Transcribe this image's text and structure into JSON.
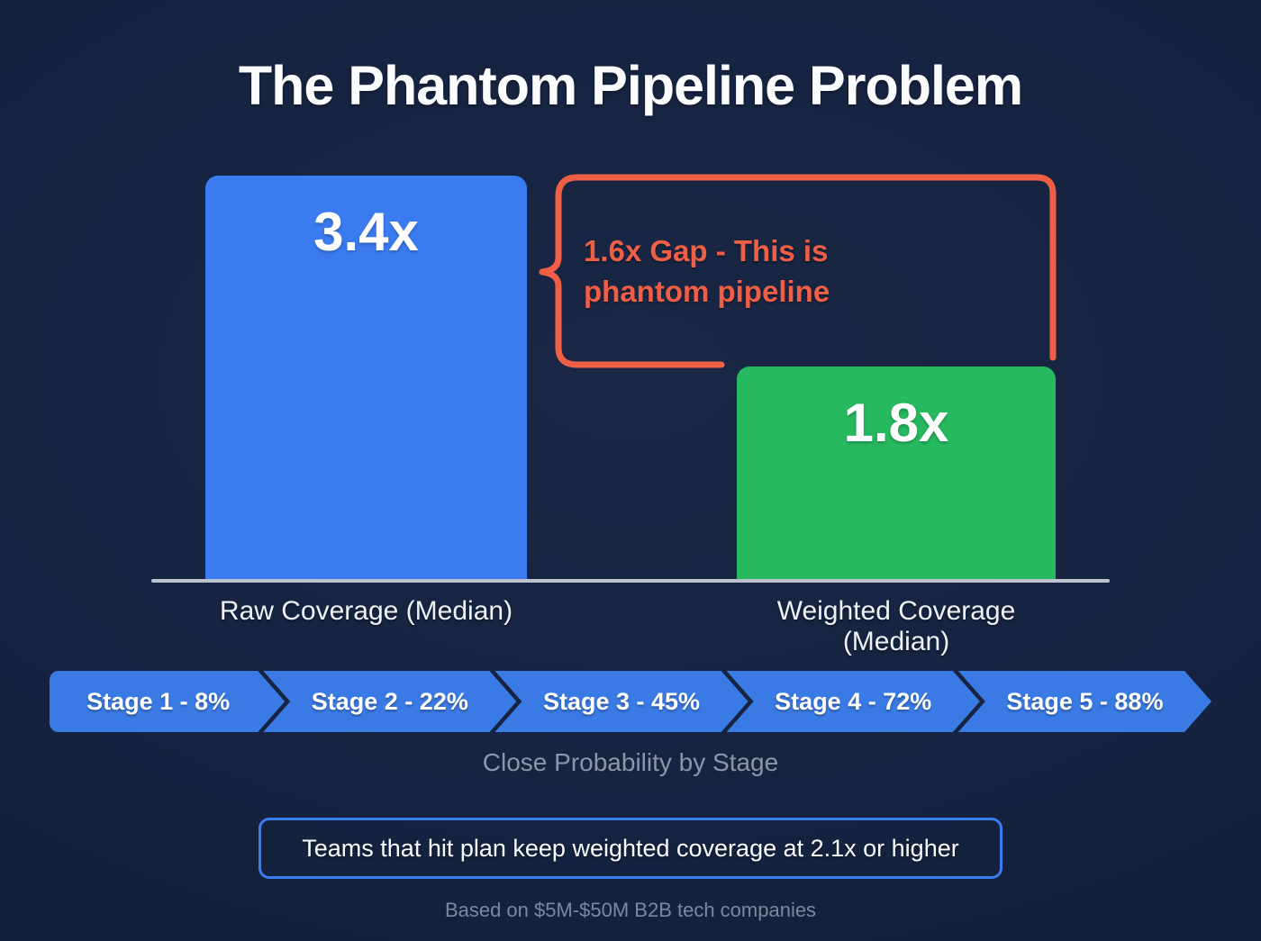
{
  "title": "The Phantom Pipeline Problem",
  "chart_data": {
    "type": "bar",
    "categories": [
      "Raw Coverage (Median)",
      "Weighted Coverage (Median)"
    ],
    "values": [
      3.4,
      1.8
    ],
    "value_labels": [
      "3.4x",
      "1.8x"
    ],
    "bar_colors": [
      "#3a7cf0",
      "#27b95f"
    ],
    "title": "The Phantom Pipeline Problem",
    "ylim": [
      0,
      3.4
    ],
    "grid": false,
    "legend": false,
    "annotation": {
      "gap_value": "1.6x",
      "text_line1": "1.6x Gap - This is",
      "text_line2": "phantom pipeline",
      "color": "#ef5f46"
    }
  },
  "stages": {
    "items": [
      {
        "label": "Stage 1 - 8%",
        "stage": 1,
        "close_probability_pct": 8
      },
      {
        "label": "Stage 2 - 22%",
        "stage": 2,
        "close_probability_pct": 22
      },
      {
        "label": "Stage 3 - 45%",
        "stage": 3,
        "close_probability_pct": 45
      },
      {
        "label": "Stage 4 - 72%",
        "stage": 4,
        "close_probability_pct": 72
      },
      {
        "label": "Stage 5 - 88%",
        "stage": 5,
        "close_probability_pct": 88
      }
    ],
    "caption": "Close Probability by Stage"
  },
  "callout": {
    "text": "Teams that hit plan keep weighted coverage at 2.1x or higher"
  },
  "footnote": "Based on $5M-$50M B2B tech companies",
  "colors": {
    "background": "#152340",
    "bar_blue": "#3a7cf0",
    "bar_green": "#27b95f",
    "annotation_red": "#ef5f46",
    "chevron_blue": "#3a7ae4",
    "axis_line": "#bcc3ce",
    "label_text": "#eef1f6",
    "muted_text": "#8d96a8",
    "footnote_text": "#7d889d",
    "callout_border": "#3a7cf0",
    "text_white": "#ffffff"
  }
}
